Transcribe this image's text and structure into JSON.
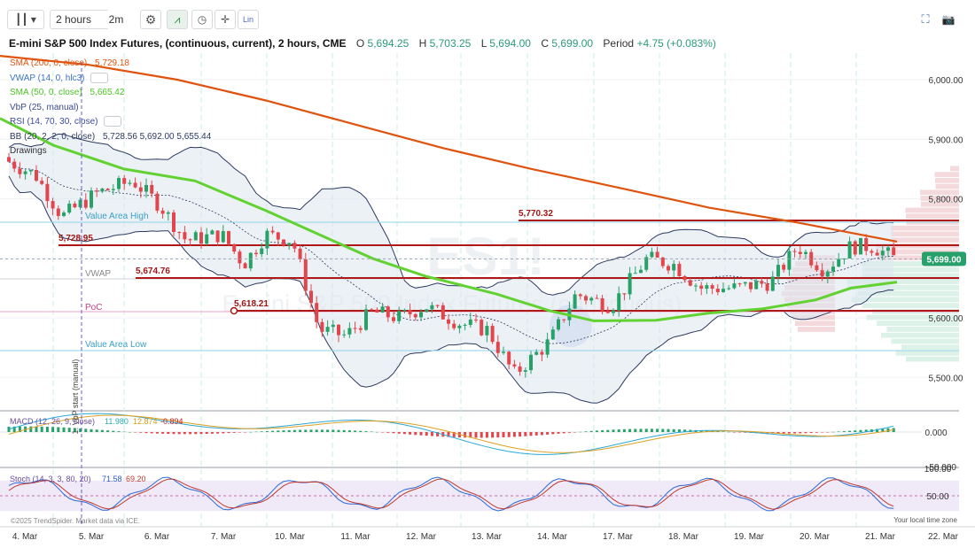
{
  "toolbar": {
    "chart_type_icon": "candlestick-icon",
    "timeframe": "2 hours",
    "replay": "2m",
    "lin": "Lin"
  },
  "header": {
    "title": "E-mini S&P 500 Index Futures, (continuous, current), 2 hours, CME",
    "o_label": "O",
    "o_value": "5,694.25",
    "h_label": "H",
    "h_value": "5,703.25",
    "l_label": "L",
    "l_value": "5,694.00",
    "c_label": "C",
    "c_value": "5,699.00",
    "period_label": "Period",
    "period_value": "+4.75 (+0.083%)"
  },
  "legend": {
    "sma200": {
      "label": "SMA (200, 0, close)",
      "value": "5,729.18",
      "color": "#e0530e"
    },
    "vwap": {
      "label": "VWAP (14, 0, hlc3)",
      "color": "#3b74c4"
    },
    "sma50": {
      "label": "SMA (50, 0, close)",
      "value": "5,665.42",
      "color": "#5bd22f"
    },
    "vbp": {
      "label": "VbP (25, manual)",
      "color": "#e25565"
    },
    "rsi": {
      "label": "RSI (14, 70, 30, close)",
      "color": "#3a4aa0"
    },
    "bb": {
      "label": "BB (20, 2, 2, 0, close)",
      "values": "5,728.56  5,692.00  5,655.44",
      "color": "#2d3a60"
    },
    "drawings": "Drawings"
  },
  "watermark": {
    "symbol": "ES1!",
    "name": "E-mini S&P 500 Index Futures (continuous)"
  },
  "levels": [
    {
      "label": "5,770.32",
      "price": 5770.32
    },
    {
      "label": "5,728.95",
      "price": 5728.95
    },
    {
      "label": "5,674.76",
      "price": 5674.76
    },
    {
      "label": "5,618.21",
      "price": 5618.21
    }
  ],
  "profile_lines": {
    "value_area_high": "Value Area High",
    "vwap": "VWAP",
    "poc": "PoC",
    "value_area_low": "Value Area Low",
    "vbp_start": "1: VbP start (manual)"
  },
  "price_axis": {
    "ticks": [
      "6,000.00",
      "5,900.00",
      "5,800.00",
      "5,600.00",
      "5,500.00"
    ],
    "current_price": "5,699.00",
    "current_color": "#27a06c"
  },
  "macd": {
    "label": "MACD (12, 26, 9, close)",
    "macd": "11.980",
    "signal": "12.874",
    "hist": "-0.894",
    "zero_tick": "0.000",
    "low_tick": "-50.000"
  },
  "stoch": {
    "label": "Stoch (14, 3, 3, 80, 20)",
    "k": "71.58",
    "d": "69.20",
    "ticks": [
      "100.00",
      "50.00"
    ]
  },
  "footer": {
    "copyright": "©2025 TrendSpider. Market data via ICE.",
    "timezone": "Your local time zone"
  },
  "x_axis": {
    "labels": [
      "4. Mar",
      "5. Mar",
      "6. Mar",
      "7. Mar",
      "10. Mar",
      "11. Mar",
      "12. Mar",
      "13. Mar",
      "14. Mar",
      "17. Mar",
      "18. Mar",
      "19. Mar",
      "20. Mar",
      "21. Mar",
      "22. Mar"
    ]
  },
  "chart_data": {
    "type": "candlestick",
    "title": "E-mini S&P 500 Index Futures, (continuous, current), 2 hours, CME",
    "x": [
      "4. Mar",
      "5. Mar",
      "6. Mar",
      "7. Mar",
      "10. Mar",
      "11. Mar",
      "12. Mar",
      "13. Mar",
      "14. Mar",
      "17. Mar",
      "18. Mar",
      "19. Mar",
      "20. Mar",
      "21. Mar",
      "22. Mar"
    ],
    "ylim": [
      5480,
      6060
    ],
    "series": [
      {
        "name": "Price (approx close by day)",
        "values": [
          5850,
          5810,
          5790,
          5740,
          5700,
          5600,
          5590,
          5560,
          5580,
          5660,
          5670,
          5620,
          5640,
          5700,
          null
        ]
      },
      {
        "name": "SMA (200, 0, close)",
        "values": [
          6040,
          6025,
          6000,
          5970,
          5945,
          5905,
          5870,
          5850,
          5830,
          5805,
          5780,
          5760,
          5745,
          5732,
          null
        ]
      },
      {
        "name": "SMA (50, 0, close)",
        "values": [
          5900,
          5860,
          5830,
          5795,
          5760,
          5720,
          5680,
          5650,
          5610,
          5590,
          5595,
          5600,
          5610,
          5640,
          null
        ]
      }
    ],
    "horizontal_levels": [
      5770.32,
      5728.95,
      5674.76,
      5618.21
    ],
    "last_price": 5699.0
  }
}
